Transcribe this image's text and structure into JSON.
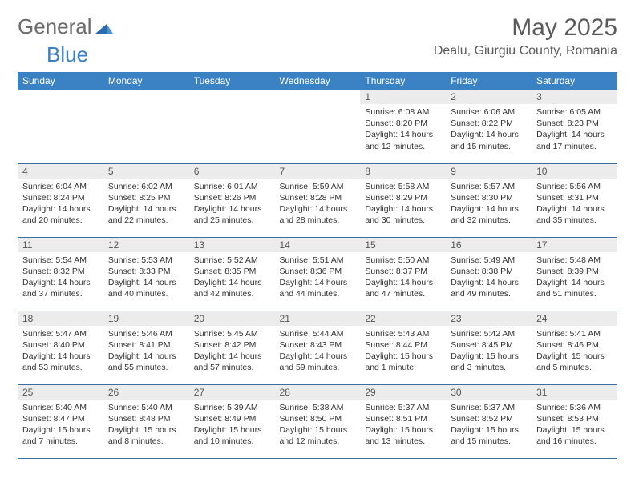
{
  "brand": {
    "word1": "General",
    "word2": "Blue"
  },
  "title": "May 2025",
  "location": "Dealu, Giurgiu County, Romania",
  "colors": {
    "header_bg": "#3b82c4",
    "header_fg": "#ffffff",
    "row_border": "#3b6ea0",
    "daynum_bg": "#ececec",
    "logo_gray": "#6b6b6b",
    "logo_blue": "#3b7fc4"
  },
  "weekdays": [
    "Sunday",
    "Monday",
    "Tuesday",
    "Wednesday",
    "Thursday",
    "Friday",
    "Saturday"
  ],
  "weeks": [
    [
      {
        "empty": true
      },
      {
        "empty": true
      },
      {
        "empty": true
      },
      {
        "empty": true
      },
      {
        "n": "1",
        "sr": "Sunrise: 6:08 AM",
        "ss": "Sunset: 8:20 PM",
        "d1": "Daylight: 14 hours",
        "d2": "and 12 minutes."
      },
      {
        "n": "2",
        "sr": "Sunrise: 6:06 AM",
        "ss": "Sunset: 8:22 PM",
        "d1": "Daylight: 14 hours",
        "d2": "and 15 minutes."
      },
      {
        "n": "3",
        "sr": "Sunrise: 6:05 AM",
        "ss": "Sunset: 8:23 PM",
        "d1": "Daylight: 14 hours",
        "d2": "and 17 minutes."
      }
    ],
    [
      {
        "n": "4",
        "sr": "Sunrise: 6:04 AM",
        "ss": "Sunset: 8:24 PM",
        "d1": "Daylight: 14 hours",
        "d2": "and 20 minutes."
      },
      {
        "n": "5",
        "sr": "Sunrise: 6:02 AM",
        "ss": "Sunset: 8:25 PM",
        "d1": "Daylight: 14 hours",
        "d2": "and 22 minutes."
      },
      {
        "n": "6",
        "sr": "Sunrise: 6:01 AM",
        "ss": "Sunset: 8:26 PM",
        "d1": "Daylight: 14 hours",
        "d2": "and 25 minutes."
      },
      {
        "n": "7",
        "sr": "Sunrise: 5:59 AM",
        "ss": "Sunset: 8:28 PM",
        "d1": "Daylight: 14 hours",
        "d2": "and 28 minutes."
      },
      {
        "n": "8",
        "sr": "Sunrise: 5:58 AM",
        "ss": "Sunset: 8:29 PM",
        "d1": "Daylight: 14 hours",
        "d2": "and 30 minutes."
      },
      {
        "n": "9",
        "sr": "Sunrise: 5:57 AM",
        "ss": "Sunset: 8:30 PM",
        "d1": "Daylight: 14 hours",
        "d2": "and 32 minutes."
      },
      {
        "n": "10",
        "sr": "Sunrise: 5:56 AM",
        "ss": "Sunset: 8:31 PM",
        "d1": "Daylight: 14 hours",
        "d2": "and 35 minutes."
      }
    ],
    [
      {
        "n": "11",
        "sr": "Sunrise: 5:54 AM",
        "ss": "Sunset: 8:32 PM",
        "d1": "Daylight: 14 hours",
        "d2": "and 37 minutes."
      },
      {
        "n": "12",
        "sr": "Sunrise: 5:53 AM",
        "ss": "Sunset: 8:33 PM",
        "d1": "Daylight: 14 hours",
        "d2": "and 40 minutes."
      },
      {
        "n": "13",
        "sr": "Sunrise: 5:52 AM",
        "ss": "Sunset: 8:35 PM",
        "d1": "Daylight: 14 hours",
        "d2": "and 42 minutes."
      },
      {
        "n": "14",
        "sr": "Sunrise: 5:51 AM",
        "ss": "Sunset: 8:36 PM",
        "d1": "Daylight: 14 hours",
        "d2": "and 44 minutes."
      },
      {
        "n": "15",
        "sr": "Sunrise: 5:50 AM",
        "ss": "Sunset: 8:37 PM",
        "d1": "Daylight: 14 hours",
        "d2": "and 47 minutes."
      },
      {
        "n": "16",
        "sr": "Sunrise: 5:49 AM",
        "ss": "Sunset: 8:38 PM",
        "d1": "Daylight: 14 hours",
        "d2": "and 49 minutes."
      },
      {
        "n": "17",
        "sr": "Sunrise: 5:48 AM",
        "ss": "Sunset: 8:39 PM",
        "d1": "Daylight: 14 hours",
        "d2": "and 51 minutes."
      }
    ],
    [
      {
        "n": "18",
        "sr": "Sunrise: 5:47 AM",
        "ss": "Sunset: 8:40 PM",
        "d1": "Daylight: 14 hours",
        "d2": "and 53 minutes."
      },
      {
        "n": "19",
        "sr": "Sunrise: 5:46 AM",
        "ss": "Sunset: 8:41 PM",
        "d1": "Daylight: 14 hours",
        "d2": "and 55 minutes."
      },
      {
        "n": "20",
        "sr": "Sunrise: 5:45 AM",
        "ss": "Sunset: 8:42 PM",
        "d1": "Daylight: 14 hours",
        "d2": "and 57 minutes."
      },
      {
        "n": "21",
        "sr": "Sunrise: 5:44 AM",
        "ss": "Sunset: 8:43 PM",
        "d1": "Daylight: 14 hours",
        "d2": "and 59 minutes."
      },
      {
        "n": "22",
        "sr": "Sunrise: 5:43 AM",
        "ss": "Sunset: 8:44 PM",
        "d1": "Daylight: 15 hours",
        "d2": "and 1 minute."
      },
      {
        "n": "23",
        "sr": "Sunrise: 5:42 AM",
        "ss": "Sunset: 8:45 PM",
        "d1": "Daylight: 15 hours",
        "d2": "and 3 minutes."
      },
      {
        "n": "24",
        "sr": "Sunrise: 5:41 AM",
        "ss": "Sunset: 8:46 PM",
        "d1": "Daylight: 15 hours",
        "d2": "and 5 minutes."
      }
    ],
    [
      {
        "n": "25",
        "sr": "Sunrise: 5:40 AM",
        "ss": "Sunset: 8:47 PM",
        "d1": "Daylight: 15 hours",
        "d2": "and 7 minutes."
      },
      {
        "n": "26",
        "sr": "Sunrise: 5:40 AM",
        "ss": "Sunset: 8:48 PM",
        "d1": "Daylight: 15 hours",
        "d2": "and 8 minutes."
      },
      {
        "n": "27",
        "sr": "Sunrise: 5:39 AM",
        "ss": "Sunset: 8:49 PM",
        "d1": "Daylight: 15 hours",
        "d2": "and 10 minutes."
      },
      {
        "n": "28",
        "sr": "Sunrise: 5:38 AM",
        "ss": "Sunset: 8:50 PM",
        "d1": "Daylight: 15 hours",
        "d2": "and 12 minutes."
      },
      {
        "n": "29",
        "sr": "Sunrise: 5:37 AM",
        "ss": "Sunset: 8:51 PM",
        "d1": "Daylight: 15 hours",
        "d2": "and 13 minutes."
      },
      {
        "n": "30",
        "sr": "Sunrise: 5:37 AM",
        "ss": "Sunset: 8:52 PM",
        "d1": "Daylight: 15 hours",
        "d2": "and 15 minutes."
      },
      {
        "n": "31",
        "sr": "Sunrise: 5:36 AM",
        "ss": "Sunset: 8:53 PM",
        "d1": "Daylight: 15 hours",
        "d2": "and 16 minutes."
      }
    ]
  ]
}
